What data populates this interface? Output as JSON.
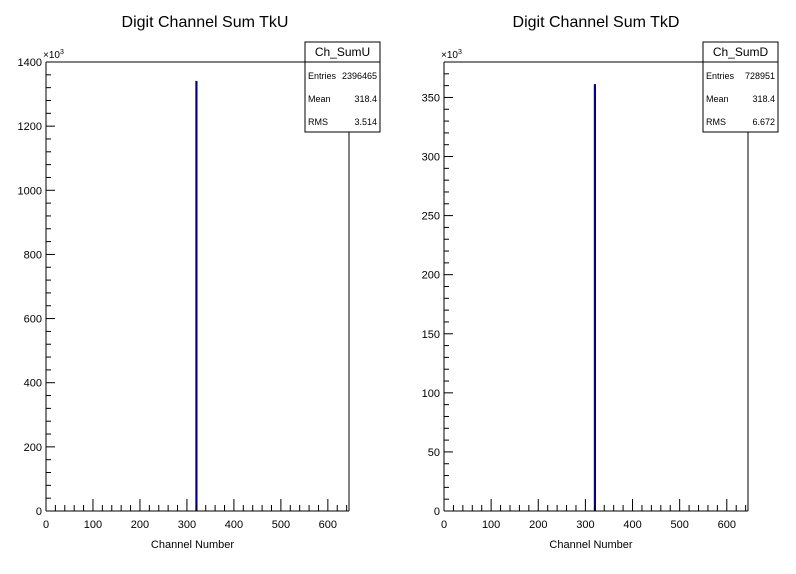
{
  "chart_data": [
    {
      "type": "bar",
      "title": "Digit Channel Sum TkU",
      "xlabel": "Channel Number",
      "ylabel": "",
      "xlim": [
        0,
        645
      ],
      "ylim": [
        0,
        1400
      ],
      "x_ticks": [
        0,
        100,
        200,
        300,
        400,
        500,
        600
      ],
      "y_ticks": [
        0,
        200,
        400,
        600,
        800,
        1000,
        1200,
        1400
      ],
      "y_multiplier": "×10",
      "y_multiplier_exp": "3",
      "bins": [
        {
          "x": 319,
          "value": 1340
        }
      ],
      "bar_color": "#000080",
      "stats": {
        "name": "Ch_SumU",
        "rows": [
          {
            "label": "Entries",
            "value": "2396465"
          },
          {
            "label": "Mean",
            "value": "318.4"
          },
          {
            "label": "RMS",
            "value": "3.514"
          }
        ]
      }
    },
    {
      "type": "bar",
      "title": "Digit Channel Sum TkD",
      "xlabel": "Channel Number",
      "ylabel": "",
      "xlim": [
        0,
        645
      ],
      "ylim": [
        0,
        380
      ],
      "x_ticks": [
        0,
        100,
        200,
        300,
        400,
        500,
        600
      ],
      "y_ticks": [
        0,
        50,
        100,
        150,
        200,
        250,
        300,
        350
      ],
      "y_multiplier": "×10",
      "y_multiplier_exp": "3",
      "bins": [
        {
          "x": 319,
          "value": 361
        }
      ],
      "bar_color": "#000080",
      "stats": {
        "name": "Ch_SumD",
        "rows": [
          {
            "label": "Entries",
            "value": "728951"
          },
          {
            "label": "Mean",
            "value": "318.4"
          },
          {
            "label": "RMS",
            "value": "6.672"
          }
        ]
      }
    }
  ]
}
